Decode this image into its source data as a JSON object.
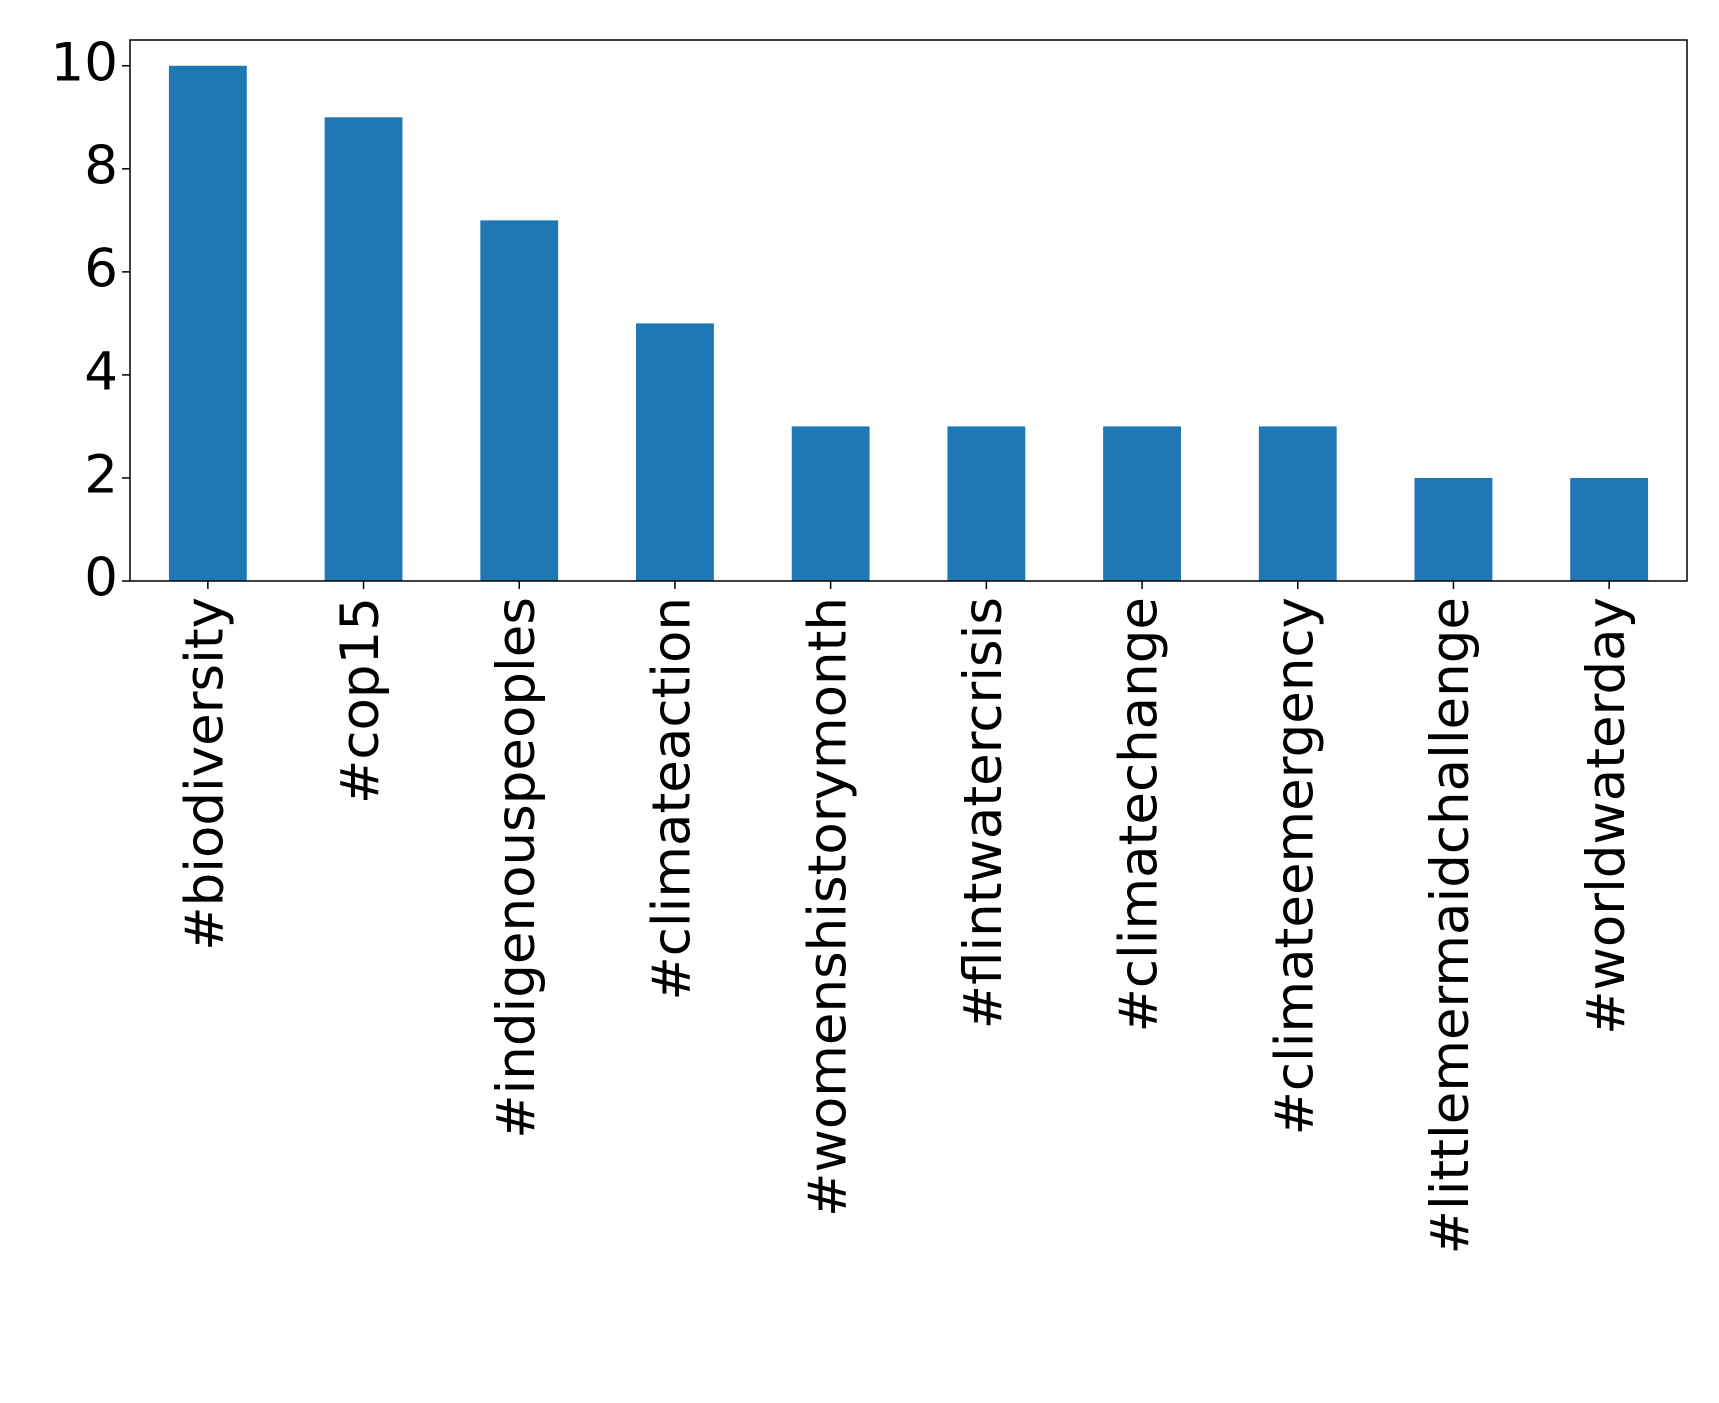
{
  "chart_data": {
    "type": "bar",
    "categories": [
      "#biodiversity",
      "#cop15",
      "#indigenouspeoples",
      "#climateaction",
      "#womenshistorymonth",
      "#flintwatercrisis",
      "#climatechange",
      "#climateemergency",
      "#littlemermaidchallenge",
      "#worldwaterday"
    ],
    "values": [
      10,
      9,
      7,
      5,
      3,
      3,
      3,
      3,
      2,
      2
    ],
    "color": "#1f77b4",
    "ylim": [
      0,
      10.5
    ],
    "yticks": [
      0,
      2,
      4,
      6,
      8,
      10
    ],
    "grid": false
  }
}
